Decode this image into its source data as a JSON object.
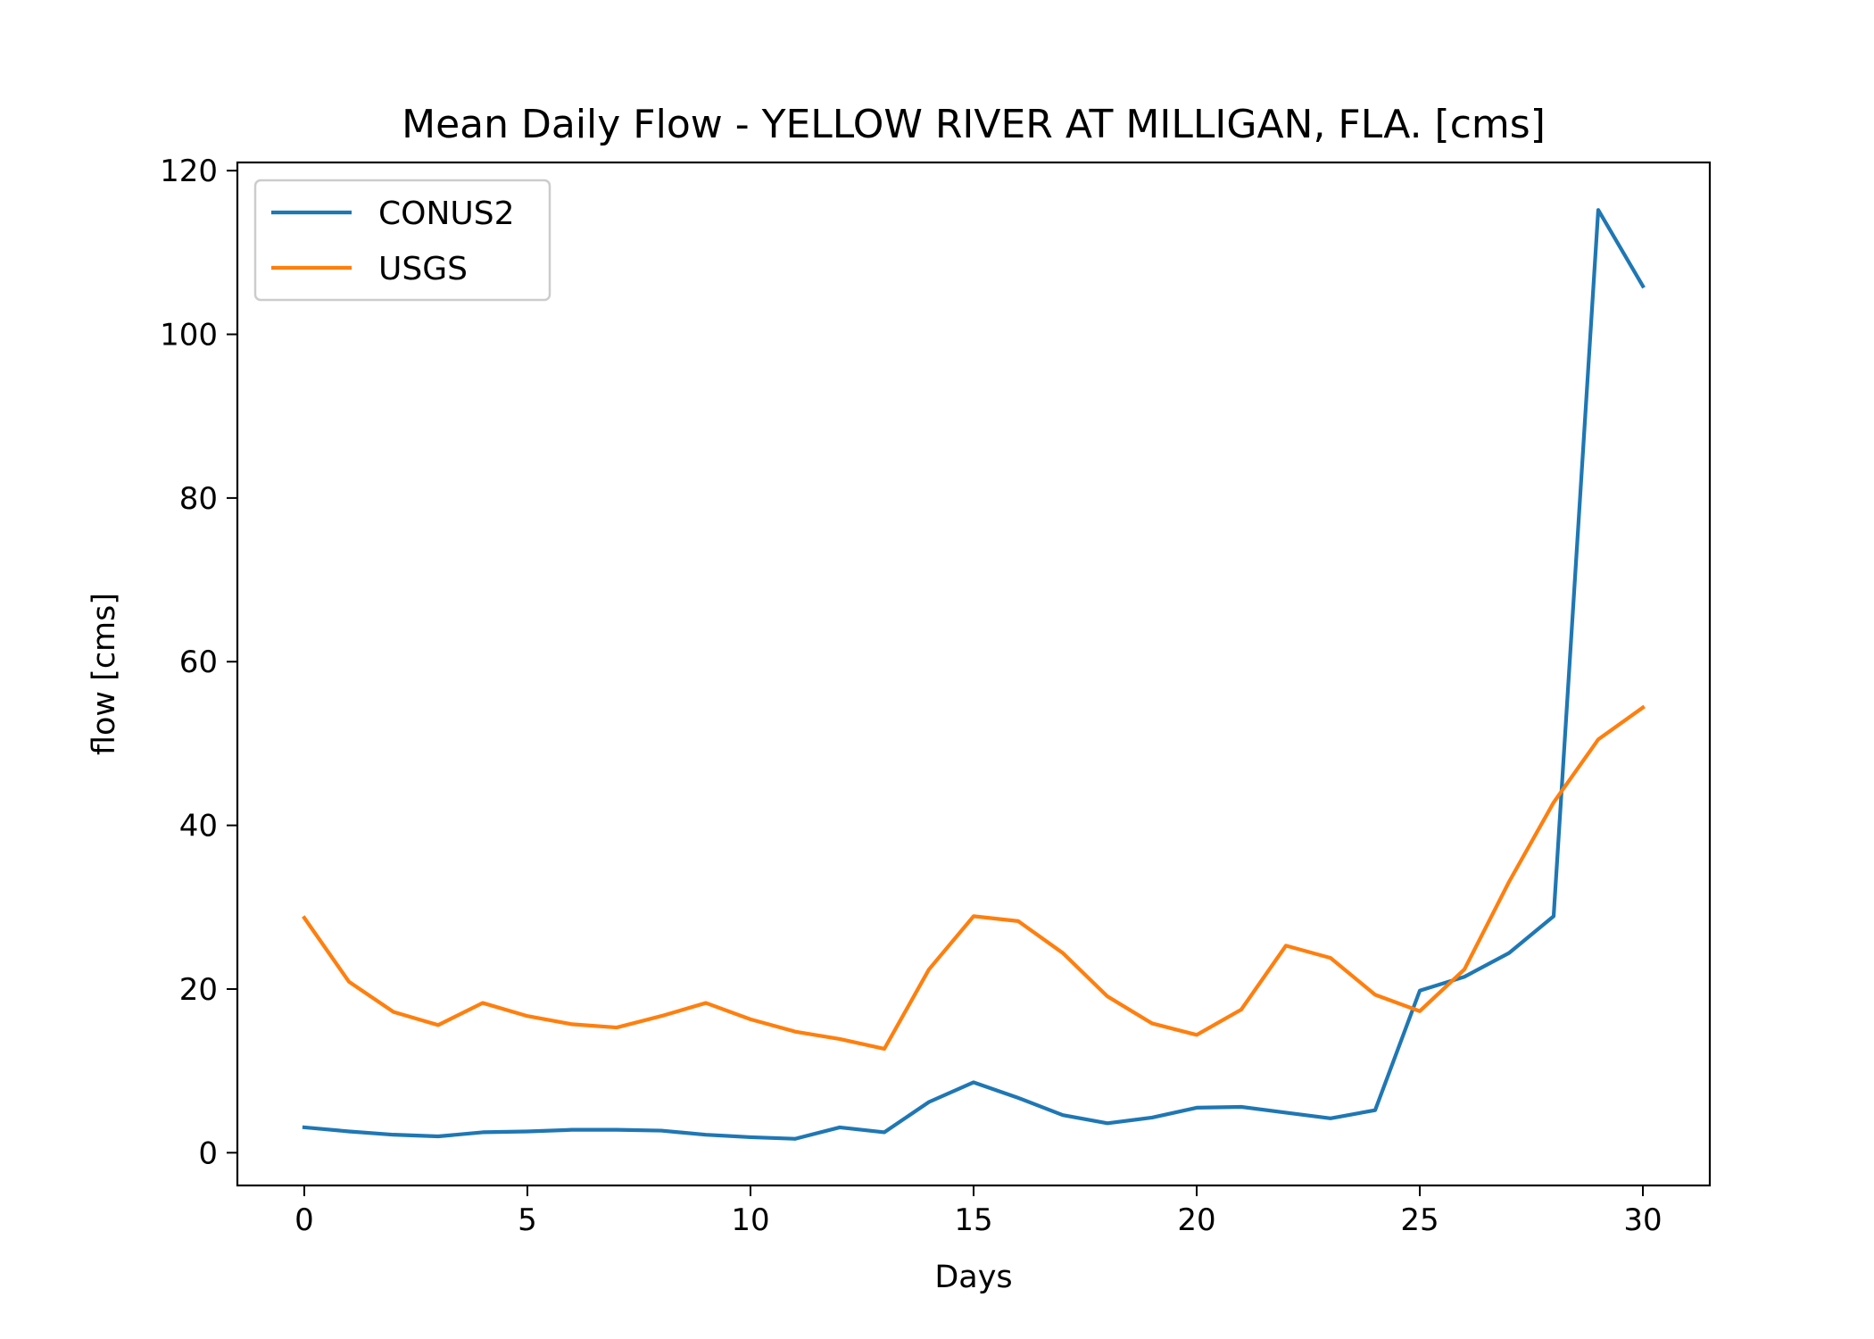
{
  "chart_data": {
    "type": "line",
    "title": "Mean Daily Flow - YELLOW RIVER AT MILLIGAN, FLA. [cms]",
    "xlabel": "Days",
    "ylabel": "flow [cms]",
    "xlim": [
      -1.5,
      31.5
    ],
    "ylim": [
      -4,
      121
    ],
    "xticks": [
      0,
      5,
      10,
      15,
      20,
      25,
      30
    ],
    "yticks": [
      0,
      20,
      40,
      60,
      80,
      100,
      120
    ],
    "x": [
      0,
      1,
      2,
      3,
      4,
      5,
      6,
      7,
      8,
      9,
      10,
      11,
      12,
      13,
      14,
      15,
      16,
      17,
      18,
      19,
      20,
      21,
      22,
      23,
      24,
      25,
      26,
      27,
      28,
      29,
      30
    ],
    "series": [
      {
        "name": "CONUS2",
        "color": "#1f77b4",
        "values": [
          3.1,
          2.6,
          2.2,
          2.0,
          2.5,
          2.6,
          2.8,
          2.8,
          2.7,
          2.2,
          1.9,
          1.7,
          3.1,
          2.5,
          6.2,
          8.6,
          6.7,
          4.6,
          3.6,
          4.3,
          5.5,
          5.6,
          4.9,
          4.2,
          5.2,
          19.8,
          21.5,
          24.4,
          28.9,
          115.2,
          105.9
        ]
      },
      {
        "name": "USGS",
        "color": "#ff7f0e",
        "values": [
          28.7,
          20.9,
          17.2,
          15.6,
          18.3,
          16.7,
          15.7,
          15.3,
          16.7,
          18.3,
          16.3,
          14.8,
          13.9,
          12.7,
          22.4,
          28.9,
          28.3,
          24.4,
          19.1,
          15.8,
          14.4,
          17.5,
          25.3,
          23.8,
          19.3,
          17.3,
          22.4,
          33.1,
          42.8,
          50.5,
          54.4
        ]
      }
    ],
    "legend_position": "top-left",
    "grid": false
  }
}
